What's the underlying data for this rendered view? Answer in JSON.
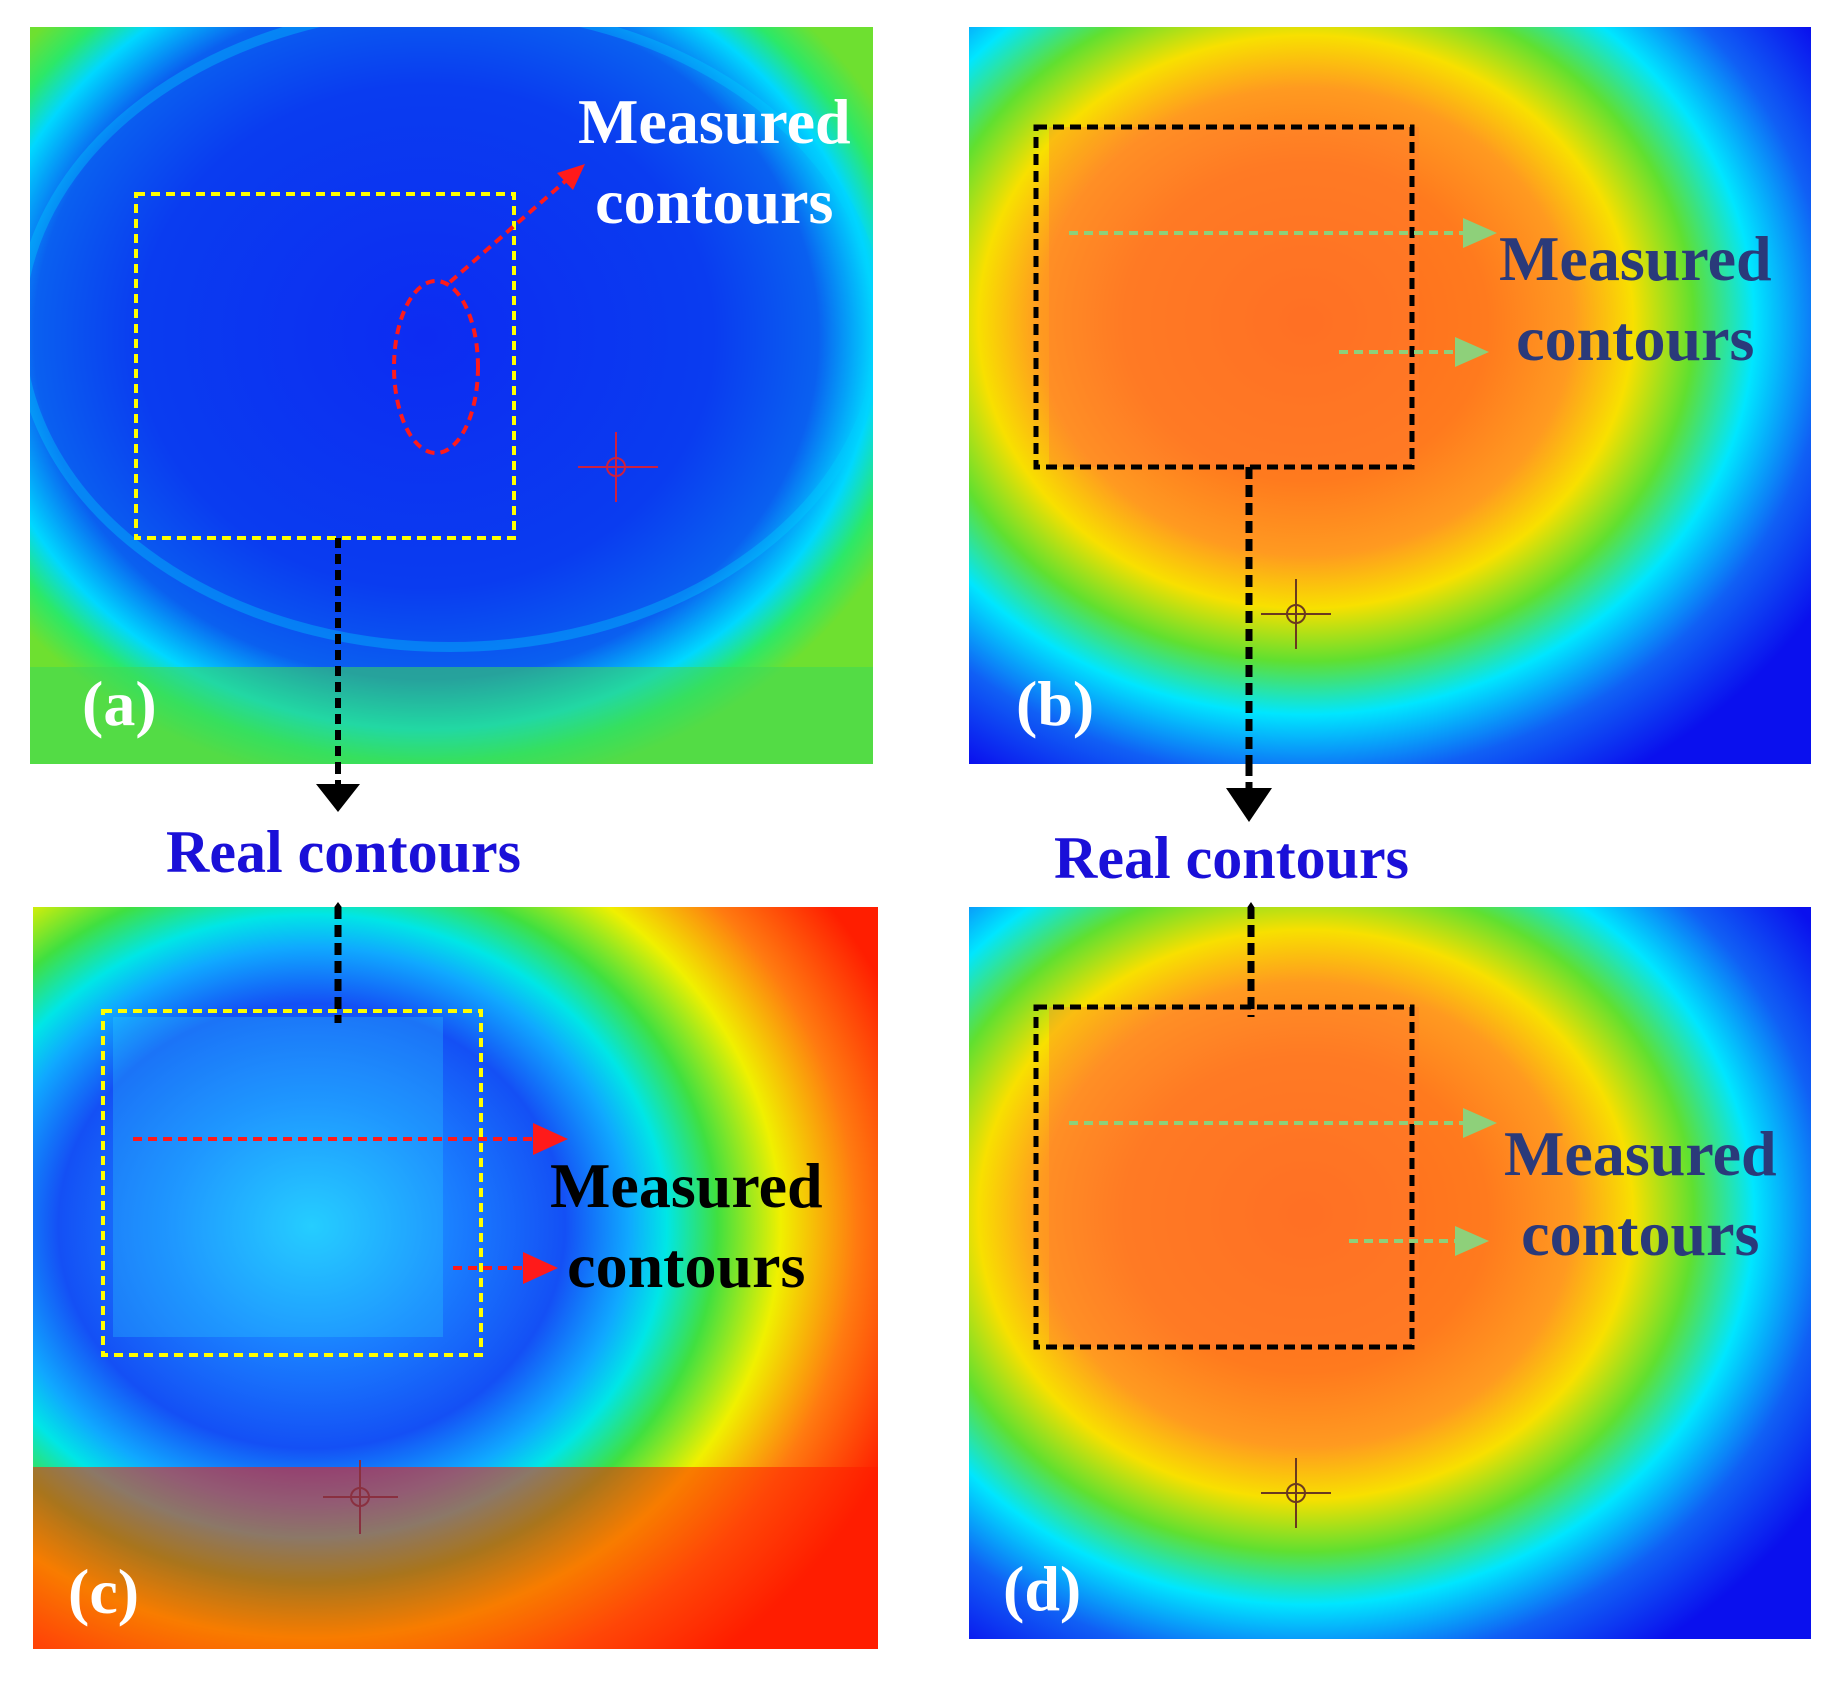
{
  "colors": {
    "jet_blue": "#0a14f0",
    "jet_cyan": "#00e6ff",
    "jet_green": "#3cdc28",
    "jet_yellow": "#f0f000",
    "jet_orange": "#ff7b1e",
    "jet_red": "#ff1e00",
    "box_yellow": "#ffff00",
    "box_black": "#000000",
    "arrow_red": "#ff1a1a",
    "arrow_green": "#8ed07a",
    "text_white": "#ffffff",
    "text_blue": "#1a10d8",
    "text_black": "#000000",
    "text_navy": "#2a3a7a"
  },
  "panels": [
    {
      "id": "a",
      "label": "(a)",
      "annotation": [
        "Measured",
        "contours"
      ]
    },
    {
      "id": "b",
      "label": "(b)",
      "annotation": [
        "Measured",
        "contours"
      ]
    },
    {
      "id": "c",
      "label": "(c)",
      "annotation": [
        "Measured",
        "contours"
      ]
    },
    {
      "id": "d",
      "label": "(d)",
      "annotation": [
        "Measured",
        "contours"
      ]
    }
  ],
  "between_labels": {
    "left": "Real contours",
    "right": "Real contours"
  }
}
